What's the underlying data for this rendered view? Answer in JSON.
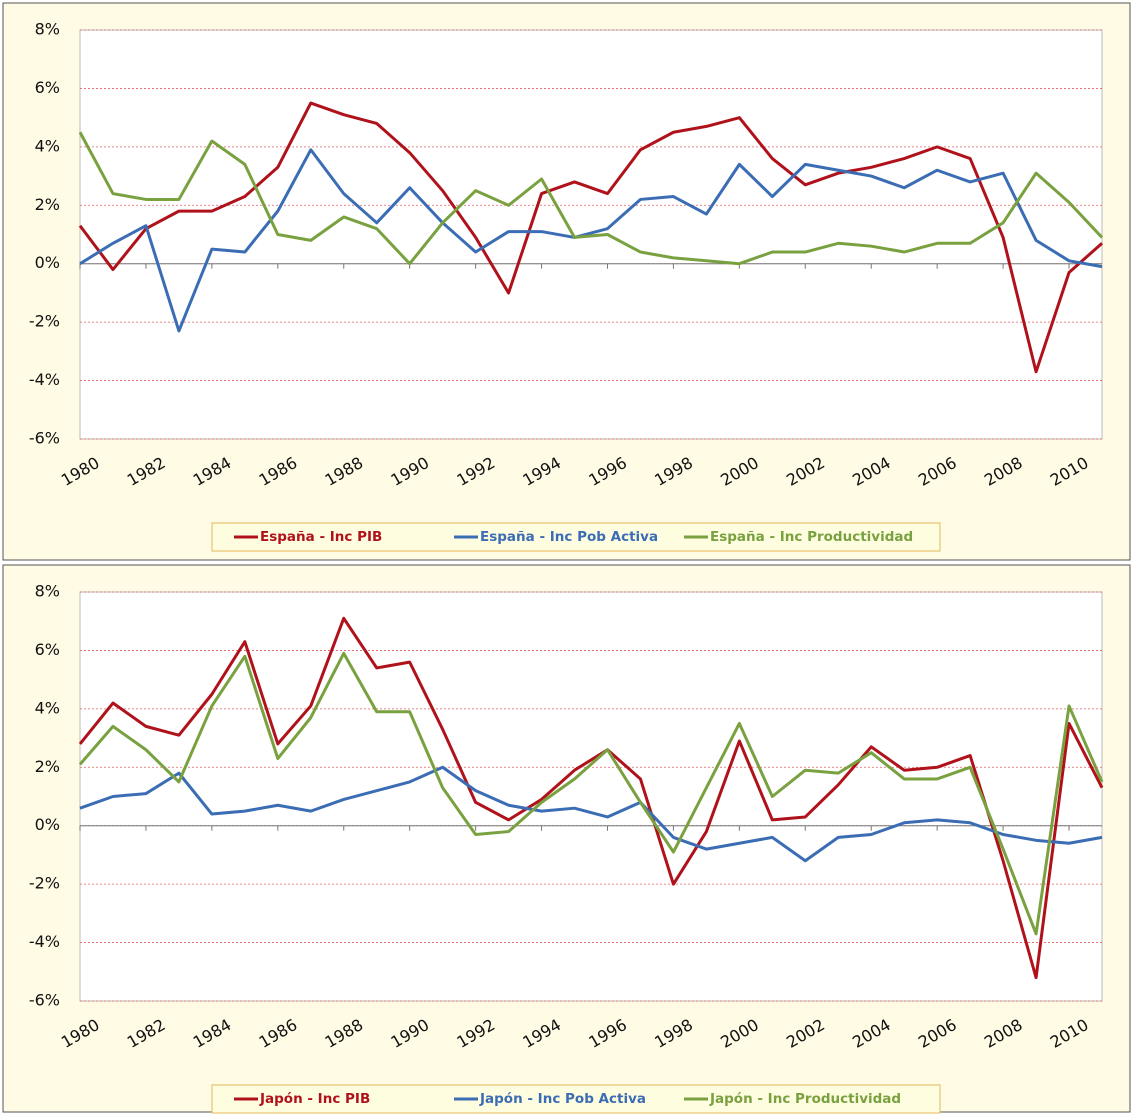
{
  "chart_data": [
    {
      "type": "line",
      "x": [
        1980,
        1981,
        1982,
        1983,
        1984,
        1985,
        1986,
        1987,
        1988,
        1989,
        1990,
        1991,
        1992,
        1993,
        1994,
        1995,
        1996,
        1997,
        1998,
        1999,
        2000,
        2001,
        2002,
        2003,
        2004,
        2005,
        2006,
        2007,
        2008,
        2009,
        2010,
        2011
      ],
      "series": [
        {
          "name": "España - Inc PIB",
          "color": "#b0121b",
          "values": [
            1.3,
            -0.2,
            1.2,
            1.8,
            1.8,
            2.3,
            3.3,
            5.5,
            5.1,
            4.8,
            3.8,
            2.5,
            0.9,
            -1.0,
            2.4,
            2.8,
            2.4,
            3.9,
            4.5,
            4.7,
            5.0,
            3.6,
            2.7,
            3.1,
            3.3,
            3.6,
            4.0,
            3.6,
            0.9,
            -3.7,
            -0.3,
            0.7
          ]
        },
        {
          "name": "España - Inc Pob Activa",
          "color": "#3b6db4",
          "values": [
            0.0,
            0.7,
            1.3,
            -2.3,
            0.5,
            0.4,
            1.8,
            3.9,
            2.4,
            1.4,
            2.6,
            1.4,
            0.4,
            1.1,
            1.1,
            0.9,
            1.2,
            2.2,
            2.3,
            1.7,
            3.4,
            2.3,
            3.4,
            3.2,
            3.0,
            2.6,
            3.2,
            2.8,
            3.1,
            0.8,
            0.1,
            -0.1
          ]
        },
        {
          "name": "España - Inc Productividad",
          "color": "#79a13f",
          "values": [
            4.5,
            2.4,
            2.2,
            2.2,
            4.2,
            3.4,
            1.0,
            0.8,
            1.6,
            1.2,
            0.0,
            1.4,
            2.5,
            2.0,
            2.9,
            0.9,
            1.0,
            0.4,
            0.2,
            0.1,
            0.0,
            0.4,
            0.4,
            0.7,
            0.6,
            0.4,
            0.7,
            0.7,
            1.4,
            3.1,
            2.1,
            0.9
          ]
        }
      ],
      "xlim": [
        1980,
        2011
      ],
      "xticks": [
        1980,
        1982,
        1984,
        1986,
        1988,
        1990,
        1992,
        1994,
        1996,
        1998,
        2000,
        2002,
        2004,
        2006,
        2008,
        2010
      ],
      "ylim": [
        -6,
        8
      ],
      "yticks": [
        {
          "value": -6,
          "label": "-6%"
        },
        {
          "value": -4,
          "label": "-4%"
        },
        {
          "value": -2,
          "label": "-2%"
        },
        {
          "value": 0,
          "label": "0%"
        },
        {
          "value": 2,
          "label": "2%"
        },
        {
          "value": 4,
          "label": "4%"
        },
        {
          "value": 6,
          "label": "6%"
        },
        {
          "value": 8,
          "label": "8%"
        }
      ],
      "grid": true,
      "legend": "bottom"
    },
    {
      "type": "line",
      "x": [
        1980,
        1981,
        1982,
        1983,
        1984,
        1985,
        1986,
        1987,
        1988,
        1989,
        1990,
        1991,
        1992,
        1993,
        1994,
        1995,
        1996,
        1997,
        1998,
        1999,
        2000,
        2001,
        2002,
        2003,
        2004,
        2005,
        2006,
        2007,
        2008,
        2009,
        2010,
        2011
      ],
      "series": [
        {
          "name": "Japón - Inc PIB",
          "color": "#b0121b",
          "values": [
            2.8,
            4.2,
            3.4,
            3.1,
            4.5,
            6.3,
            2.8,
            4.1,
            7.1,
            5.4,
            5.6,
            3.3,
            0.8,
            0.2,
            0.9,
            1.9,
            2.6,
            1.6,
            -2.0,
            -0.2,
            2.9,
            0.2,
            0.3,
            1.4,
            2.7,
            1.9,
            2.0,
            2.4,
            -1.2,
            -5.2,
            3.5,
            1.3
          ]
        },
        {
          "name": "Japón - Inc Pob Activa",
          "color": "#3b6db4",
          "values": [
            0.6,
            1.0,
            1.1,
            1.8,
            0.4,
            0.5,
            0.7,
            0.5,
            0.9,
            1.2,
            1.5,
            2.0,
            1.2,
            0.7,
            0.5,
            0.6,
            0.3,
            0.8,
            -0.4,
            -0.8,
            -0.6,
            -0.4,
            -1.2,
            -0.4,
            -0.3,
            0.1,
            0.2,
            0.1,
            -0.3,
            -0.5,
            -0.6,
            -0.4
          ]
        },
        {
          "name": "Japón - Inc Productividad",
          "color": "#79a13f",
          "values": [
            2.1,
            3.4,
            2.6,
            1.5,
            4.1,
            5.8,
            2.3,
            3.7,
            5.9,
            3.9,
            3.9,
            1.3,
            -0.3,
            -0.2,
            0.8,
            1.6,
            2.6,
            0.8,
            -0.9,
            1.3,
            3.5,
            1.0,
            1.9,
            1.8,
            2.5,
            1.6,
            1.6,
            2.0,
            -0.8,
            -3.7,
            4.1,
            1.5
          ]
        }
      ],
      "xlim": [
        1980,
        2011
      ],
      "xticks": [
        1980,
        1982,
        1984,
        1986,
        1988,
        1990,
        1992,
        1994,
        1996,
        1998,
        2000,
        2002,
        2004,
        2006,
        2008,
        2010
      ],
      "ylim": [
        -6,
        8
      ],
      "yticks": [
        {
          "value": -6,
          "label": "-6%"
        },
        {
          "value": -4,
          "label": "-4%"
        },
        {
          "value": -2,
          "label": "-2%"
        },
        {
          "value": 0,
          "label": "0%"
        },
        {
          "value": 2,
          "label": "2%"
        },
        {
          "value": 4,
          "label": "4%"
        },
        {
          "value": 6,
          "label": "6%"
        },
        {
          "value": 8,
          "label": "8%"
        }
      ],
      "grid": true,
      "legend": "bottom"
    }
  ]
}
